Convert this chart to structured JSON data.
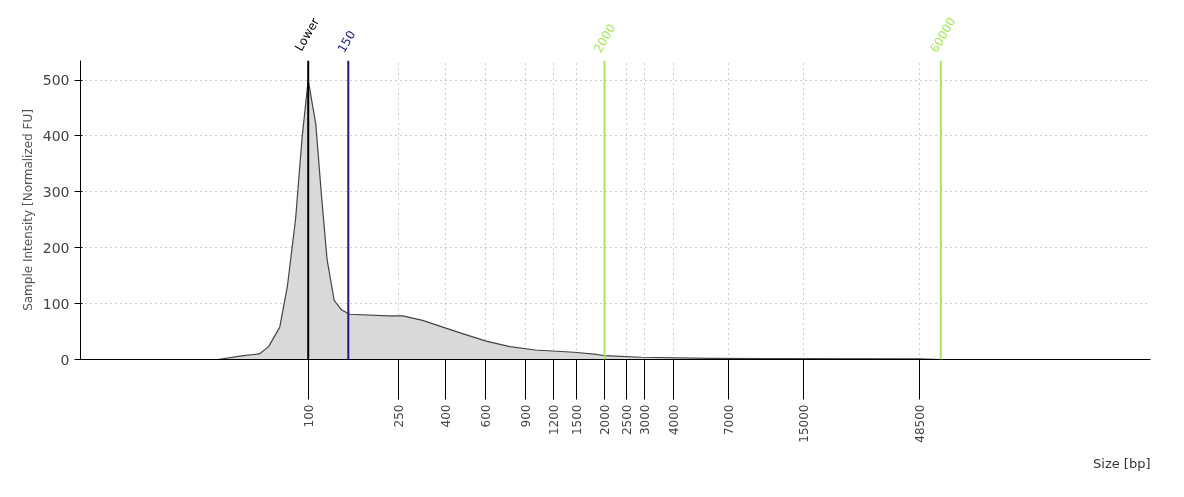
{
  "chart_data": {
    "type": "area",
    "xlabel": "Size [bp]",
    "ylabel": "Sample Intensity [Normalized FU]",
    "log": "x",
    "xlim": [
      10,
      500000
    ],
    "ylim": [
      0,
      535
    ],
    "xticks": [
      100,
      250,
      400,
      600,
      900,
      1200,
      1500,
      2000,
      2500,
      3000,
      4000,
      7000,
      15000,
      48500
    ],
    "yticks": [
      0,
      100,
      200,
      300,
      400,
      500
    ],
    "grid": true,
    "series": [
      {
        "color": "#d9d9d9",
        "x": [
          40,
          52,
          61,
          67,
          75,
          81,
          88,
          94,
          100,
          108,
          114,
          121,
          130,
          140,
          152,
          226,
          260,
          318,
          390,
          487,
          605,
          768,
          994,
          1470,
          1850,
          2000,
          2900,
          5800,
          48500,
          60000
        ],
        "values": [
          0,
          7,
          10,
          23,
          58,
          131,
          251,
          397,
          500,
          421,
          300,
          179,
          106,
          89,
          81,
          78,
          78,
          70,
          58,
          45,
          33,
          23,
          17,
          13,
          9,
          7,
          4,
          2,
          1,
          0
        ]
      }
    ],
    "ref_lines": [
      {
        "axis": "x",
        "value": 100,
        "label": "Lower",
        "color": "#000000"
      },
      {
        "axis": "x",
        "value": 150,
        "label": "150",
        "color": "#1c1c80"
      },
      {
        "axis": "x",
        "value": 2000,
        "label": "2000",
        "color": "#a6e85a"
      },
      {
        "axis": "x",
        "value": 60000,
        "label": "60000",
        "color": "#a6e85a"
      }
    ]
  }
}
